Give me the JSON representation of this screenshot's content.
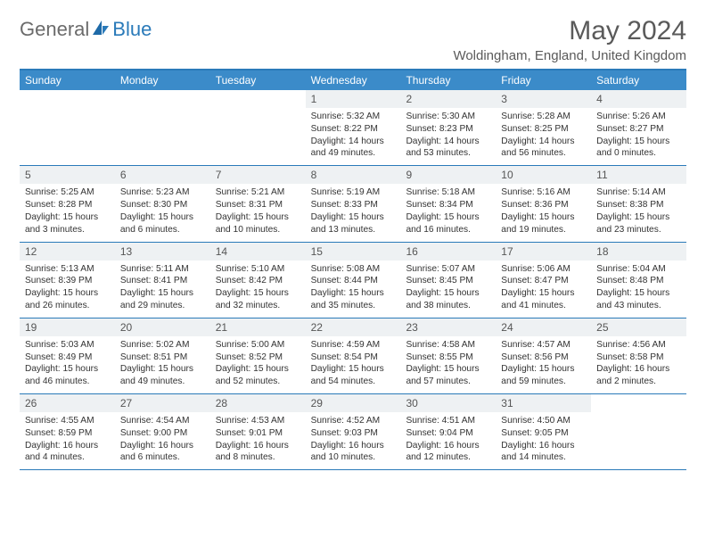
{
  "brand": {
    "text_general": "General",
    "text_blue": "Blue"
  },
  "header": {
    "title": "May 2024",
    "location": "Woldingham, England, United Kingdom"
  },
  "colors": {
    "accent": "#2a7ab9",
    "header_bar": "#3b8bc9",
    "day_num_bg": "#eef1f3",
    "text_muted": "#5a5a5a"
  },
  "weekdayNames": [
    "Sunday",
    "Monday",
    "Tuesday",
    "Wednesday",
    "Thursday",
    "Friday",
    "Saturday"
  ],
  "weeks": [
    [
      {
        "empty": true
      },
      {
        "empty": true
      },
      {
        "empty": true
      },
      {
        "num": "1",
        "sunrise": "Sunrise: 5:32 AM",
        "sunset": "Sunset: 8:22 PM",
        "daylight": "Daylight: 14 hours and 49 minutes."
      },
      {
        "num": "2",
        "sunrise": "Sunrise: 5:30 AM",
        "sunset": "Sunset: 8:23 PM",
        "daylight": "Daylight: 14 hours and 53 minutes."
      },
      {
        "num": "3",
        "sunrise": "Sunrise: 5:28 AM",
        "sunset": "Sunset: 8:25 PM",
        "daylight": "Daylight: 14 hours and 56 minutes."
      },
      {
        "num": "4",
        "sunrise": "Sunrise: 5:26 AM",
        "sunset": "Sunset: 8:27 PM",
        "daylight": "Daylight: 15 hours and 0 minutes."
      }
    ],
    [
      {
        "num": "5",
        "sunrise": "Sunrise: 5:25 AM",
        "sunset": "Sunset: 8:28 PM",
        "daylight": "Daylight: 15 hours and 3 minutes."
      },
      {
        "num": "6",
        "sunrise": "Sunrise: 5:23 AM",
        "sunset": "Sunset: 8:30 PM",
        "daylight": "Daylight: 15 hours and 6 minutes."
      },
      {
        "num": "7",
        "sunrise": "Sunrise: 5:21 AM",
        "sunset": "Sunset: 8:31 PM",
        "daylight": "Daylight: 15 hours and 10 minutes."
      },
      {
        "num": "8",
        "sunrise": "Sunrise: 5:19 AM",
        "sunset": "Sunset: 8:33 PM",
        "daylight": "Daylight: 15 hours and 13 minutes."
      },
      {
        "num": "9",
        "sunrise": "Sunrise: 5:18 AM",
        "sunset": "Sunset: 8:34 PM",
        "daylight": "Daylight: 15 hours and 16 minutes."
      },
      {
        "num": "10",
        "sunrise": "Sunrise: 5:16 AM",
        "sunset": "Sunset: 8:36 PM",
        "daylight": "Daylight: 15 hours and 19 minutes."
      },
      {
        "num": "11",
        "sunrise": "Sunrise: 5:14 AM",
        "sunset": "Sunset: 8:38 PM",
        "daylight": "Daylight: 15 hours and 23 minutes."
      }
    ],
    [
      {
        "num": "12",
        "sunrise": "Sunrise: 5:13 AM",
        "sunset": "Sunset: 8:39 PM",
        "daylight": "Daylight: 15 hours and 26 minutes."
      },
      {
        "num": "13",
        "sunrise": "Sunrise: 5:11 AM",
        "sunset": "Sunset: 8:41 PM",
        "daylight": "Daylight: 15 hours and 29 minutes."
      },
      {
        "num": "14",
        "sunrise": "Sunrise: 5:10 AM",
        "sunset": "Sunset: 8:42 PM",
        "daylight": "Daylight: 15 hours and 32 minutes."
      },
      {
        "num": "15",
        "sunrise": "Sunrise: 5:08 AM",
        "sunset": "Sunset: 8:44 PM",
        "daylight": "Daylight: 15 hours and 35 minutes."
      },
      {
        "num": "16",
        "sunrise": "Sunrise: 5:07 AM",
        "sunset": "Sunset: 8:45 PM",
        "daylight": "Daylight: 15 hours and 38 minutes."
      },
      {
        "num": "17",
        "sunrise": "Sunrise: 5:06 AM",
        "sunset": "Sunset: 8:47 PM",
        "daylight": "Daylight: 15 hours and 41 minutes."
      },
      {
        "num": "18",
        "sunrise": "Sunrise: 5:04 AM",
        "sunset": "Sunset: 8:48 PM",
        "daylight": "Daylight: 15 hours and 43 minutes."
      }
    ],
    [
      {
        "num": "19",
        "sunrise": "Sunrise: 5:03 AM",
        "sunset": "Sunset: 8:49 PM",
        "daylight": "Daylight: 15 hours and 46 minutes."
      },
      {
        "num": "20",
        "sunrise": "Sunrise: 5:02 AM",
        "sunset": "Sunset: 8:51 PM",
        "daylight": "Daylight: 15 hours and 49 minutes."
      },
      {
        "num": "21",
        "sunrise": "Sunrise: 5:00 AM",
        "sunset": "Sunset: 8:52 PM",
        "daylight": "Daylight: 15 hours and 52 minutes."
      },
      {
        "num": "22",
        "sunrise": "Sunrise: 4:59 AM",
        "sunset": "Sunset: 8:54 PM",
        "daylight": "Daylight: 15 hours and 54 minutes."
      },
      {
        "num": "23",
        "sunrise": "Sunrise: 4:58 AM",
        "sunset": "Sunset: 8:55 PM",
        "daylight": "Daylight: 15 hours and 57 minutes."
      },
      {
        "num": "24",
        "sunrise": "Sunrise: 4:57 AM",
        "sunset": "Sunset: 8:56 PM",
        "daylight": "Daylight: 15 hours and 59 minutes."
      },
      {
        "num": "25",
        "sunrise": "Sunrise: 4:56 AM",
        "sunset": "Sunset: 8:58 PM",
        "daylight": "Daylight: 16 hours and 2 minutes."
      }
    ],
    [
      {
        "num": "26",
        "sunrise": "Sunrise: 4:55 AM",
        "sunset": "Sunset: 8:59 PM",
        "daylight": "Daylight: 16 hours and 4 minutes."
      },
      {
        "num": "27",
        "sunrise": "Sunrise: 4:54 AM",
        "sunset": "Sunset: 9:00 PM",
        "daylight": "Daylight: 16 hours and 6 minutes."
      },
      {
        "num": "28",
        "sunrise": "Sunrise: 4:53 AM",
        "sunset": "Sunset: 9:01 PM",
        "daylight": "Daylight: 16 hours and 8 minutes."
      },
      {
        "num": "29",
        "sunrise": "Sunrise: 4:52 AM",
        "sunset": "Sunset: 9:03 PM",
        "daylight": "Daylight: 16 hours and 10 minutes."
      },
      {
        "num": "30",
        "sunrise": "Sunrise: 4:51 AM",
        "sunset": "Sunset: 9:04 PM",
        "daylight": "Daylight: 16 hours and 12 minutes."
      },
      {
        "num": "31",
        "sunrise": "Sunrise: 4:50 AM",
        "sunset": "Sunset: 9:05 PM",
        "daylight": "Daylight: 16 hours and 14 minutes."
      },
      {
        "empty": true
      }
    ]
  ]
}
